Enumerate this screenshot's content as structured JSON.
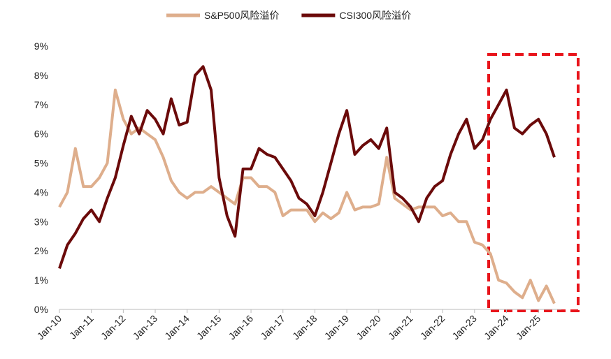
{
  "chart_data": {
    "type": "line",
    "categories": [
      "Jan-10",
      null,
      null,
      null,
      "Jan-11",
      null,
      null,
      null,
      "Jan-12",
      null,
      null,
      null,
      "Jan-13",
      null,
      null,
      null,
      "Jan-14",
      null,
      null,
      null,
      "Jan-15",
      null,
      null,
      null,
      "Jan-16",
      null,
      null,
      null,
      "Jan-17",
      null,
      null,
      null,
      "Jan-18",
      null,
      null,
      null,
      "Jan-19",
      null,
      null,
      null,
      "Jan-20",
      null,
      null,
      null,
      "Jan-21",
      null,
      null,
      null,
      "Jan-22",
      null,
      null,
      null,
      "Jan-23",
      null,
      null,
      null,
      "Jan-24",
      null,
      null,
      null,
      "Jan-25",
      null,
      null
    ],
    "series": [
      {
        "name": "S&P500风险溢价",
        "color": "#deae8c",
        "values": [
          3.5,
          4.0,
          5.5,
          4.2,
          4.2,
          4.5,
          5.0,
          7.5,
          6.5,
          6.0,
          6.2,
          6.0,
          5.8,
          5.2,
          4.4,
          4.0,
          3.8,
          4.0,
          4.0,
          4.2,
          4.0,
          3.8,
          3.6,
          4.5,
          4.5,
          4.2,
          4.2,
          4.0,
          3.2,
          3.4,
          3.4,
          3.4,
          3.0,
          3.3,
          3.1,
          3.3,
          4.0,
          3.4,
          3.5,
          3.5,
          3.6,
          5.2,
          3.8,
          3.6,
          3.4,
          3.5,
          3.5,
          3.5,
          3.2,
          3.3,
          3.0,
          3.0,
          2.3,
          2.2,
          1.9,
          1.0,
          0.9,
          0.6,
          0.4,
          1.0,
          0.3,
          0.8,
          0.2
        ]
      },
      {
        "name": "CSI300风险溢价",
        "color": "#6b0a0a",
        "values": [
          1.4,
          2.2,
          2.6,
          3.1,
          3.4,
          3.0,
          3.8,
          4.5,
          5.6,
          6.6,
          6.0,
          6.8,
          6.5,
          6.0,
          7.2,
          6.3,
          6.4,
          8.0,
          8.3,
          7.5,
          4.5,
          3.2,
          2.5,
          4.8,
          4.8,
          5.5,
          5.3,
          5.2,
          4.8,
          4.4,
          3.8,
          3.6,
          3.2,
          4.0,
          5.0,
          6.0,
          6.8,
          5.3,
          5.6,
          5.8,
          5.5,
          6.2,
          4.0,
          3.8,
          3.5,
          3.0,
          3.8,
          4.2,
          4.4,
          5.3,
          6.0,
          6.5,
          5.5,
          5.8,
          6.5,
          7.0,
          7.5,
          6.2,
          6.0,
          6.3,
          6.5,
          6.0,
          5.2
        ]
      }
    ],
    "ylim": [
      0,
      9
    ],
    "yticks": [
      {
        "value": 0,
        "label": "0%"
      },
      {
        "value": 1,
        "label": "1%"
      },
      {
        "value": 2,
        "label": "2%"
      },
      {
        "value": 3,
        "label": "3%"
      },
      {
        "value": 4,
        "label": "4%"
      },
      {
        "value": 5,
        "label": "5%"
      },
      {
        "value": 6,
        "label": "6%"
      },
      {
        "value": 7,
        "label": "7%"
      },
      {
        "value": 8,
        "label": "8%"
      },
      {
        "value": 9,
        "label": "9%"
      }
    ],
    "grid": false,
    "legend": "top"
  }
}
